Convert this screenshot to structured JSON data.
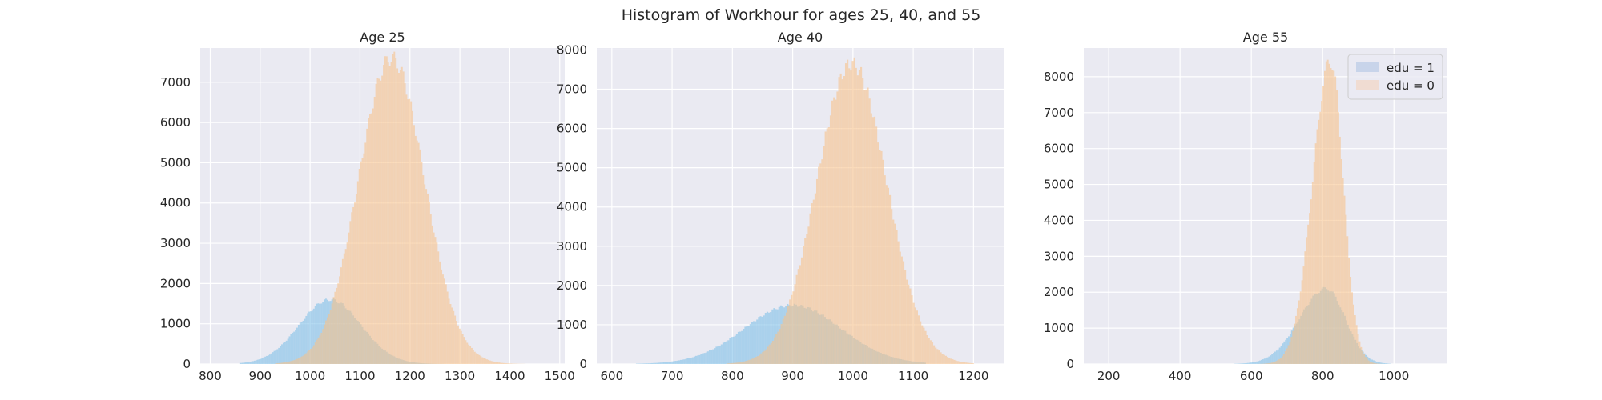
{
  "figure": {
    "title": "Histogram of Workhour for ages 25, 40, and 55"
  },
  "colors": {
    "background": "#eaeaf2",
    "grid": "#ffffff",
    "edu1": "#7fbfe8",
    "edu0": "#f7c28a",
    "edu1_legend": "#c8d4ea",
    "edu0_legend": "#f0dcd2"
  },
  "legend": {
    "placement": "upper right of third panel",
    "entries": [
      "edu = 1",
      "edu = 0"
    ]
  },
  "chart_data": [
    {
      "type": "histogram",
      "title": "Age 25",
      "xlim": [
        780,
        1510
      ],
      "ylim": [
        0,
        7850
      ],
      "xticks": [
        800,
        900,
        1000,
        1100,
        1200,
        1300,
        1400,
        1500
      ],
      "yticks": [
        0,
        1000,
        2000,
        3000,
        4000,
        5000,
        6000,
        7000
      ],
      "grid": true,
      "series": [
        {
          "name": "edu = 1",
          "distribution": "approx. normal",
          "mean": 1040,
          "sd": 62,
          "peak_count": 1600,
          "range": [
            860,
            1300
          ]
        },
        {
          "name": "edu = 0",
          "distribution": "approx. normal",
          "mean": 1163,
          "sd": 66,
          "peak_count": 7600,
          "range": [
            930,
            1430
          ]
        }
      ]
    },
    {
      "type": "histogram",
      "title": "Age 40",
      "xlim": [
        575,
        1250
      ],
      "ylim": [
        0,
        8050
      ],
      "xticks": [
        600,
        700,
        800,
        900,
        1000,
        1100,
        1200
      ],
      "yticks": [
        0,
        1000,
        2000,
        3000,
        4000,
        5000,
        6000,
        7000,
        8000
      ],
      "grid": true,
      "series": [
        {
          "name": "edu = 1",
          "distribution": "approx. normal",
          "mean": 900,
          "sd": 80,
          "peak_count": 1500,
          "range": [
            640,
            1120
          ]
        },
        {
          "name": "edu = 0",
          "distribution": "approx. normal",
          "mean": 998,
          "sd": 58,
          "peak_count": 7650,
          "range": [
            790,
            1200
          ]
        }
      ]
    },
    {
      "type": "histogram",
      "title": "Age 55",
      "xlim": [
        130,
        1150
      ],
      "ylim": [
        0,
        8800
      ],
      "xticks": [
        200,
        400,
        600,
        800,
        1000
      ],
      "yticks": [
        0,
        1000,
        2000,
        3000,
        4000,
        5000,
        6000,
        7000,
        8000
      ],
      "grid": true,
      "series": [
        {
          "name": "edu = 1",
          "distribution": "approx. normal, left-skewed",
          "mean": 810,
          "sd": 75,
          "peak_count": 2100,
          "range": [
            550,
            990
          ]
        },
        {
          "name": "edu = 0",
          "distribution": "approx. normal, left-skewed",
          "mean": 822,
          "sd": 50,
          "peak_count": 8450,
          "range": [
            600,
            980
          ]
        }
      ]
    }
  ]
}
